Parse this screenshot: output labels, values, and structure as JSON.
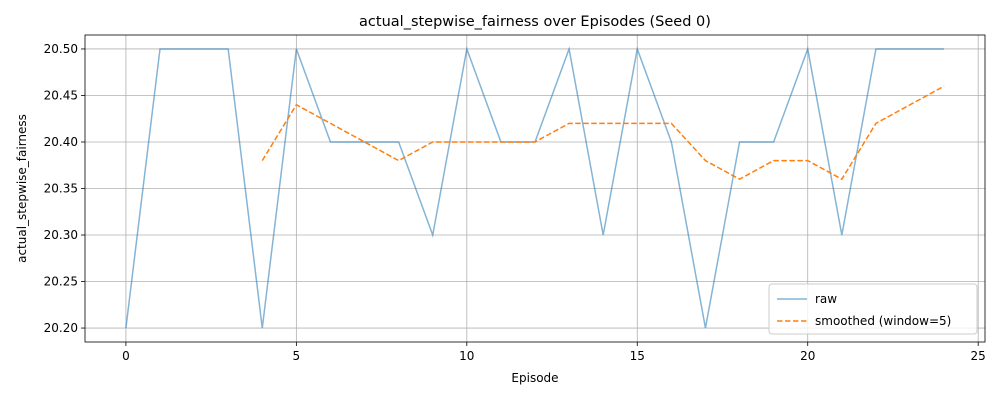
{
  "chart_data": {
    "type": "line",
    "title": "actual_stepwise_fairness over Episodes (Seed 0)",
    "xlabel": "Episode",
    "ylabel": "actual_stepwise_fairness",
    "xlim": [
      -1.2,
      25.2
    ],
    "ylim": [
      20.185,
      20.515
    ],
    "xticks": [
      0,
      5,
      10,
      15,
      20,
      25
    ],
    "yticks": [
      20.2,
      20.25,
      20.3,
      20.35,
      20.4,
      20.45,
      20.5
    ],
    "xtick_labels": [
      "0",
      "5",
      "10",
      "15",
      "20",
      "25"
    ],
    "ytick_labels": [
      "20.20",
      "20.25",
      "20.30",
      "20.35",
      "20.40",
      "20.45",
      "20.50"
    ],
    "grid": true,
    "legend_position": "bottom-right",
    "series": [
      {
        "name": "raw",
        "color": "#1f77b4",
        "style": "solid",
        "x": [
          0,
          1,
          2,
          3,
          4,
          5,
          6,
          7,
          8,
          9,
          10,
          11,
          12,
          13,
          14,
          15,
          16,
          17,
          18,
          19,
          20,
          21,
          22,
          23,
          24
        ],
        "values": [
          20.2,
          20.5,
          20.5,
          20.5,
          20.2,
          20.5,
          20.4,
          20.4,
          20.4,
          20.3,
          20.5,
          20.4,
          20.4,
          20.5,
          20.3,
          20.5,
          20.4,
          20.2,
          20.4,
          20.4,
          20.5,
          20.3,
          20.5,
          20.5,
          20.5
        ]
      },
      {
        "name": "smoothed (window=5)",
        "color": "#ff7f0e",
        "style": "dashed",
        "x": [
          4,
          5,
          6,
          7,
          8,
          9,
          10,
          11,
          12,
          13,
          14,
          15,
          16,
          17,
          18,
          19,
          20,
          21,
          22,
          23,
          24
        ],
        "values": [
          20.38,
          20.44,
          20.42,
          20.4,
          20.38,
          20.4,
          20.4,
          20.4,
          20.4,
          20.42,
          20.42,
          20.42,
          20.42,
          20.38,
          20.36,
          20.38,
          20.38,
          20.36,
          20.42,
          20.44,
          20.46
        ]
      }
    ]
  }
}
